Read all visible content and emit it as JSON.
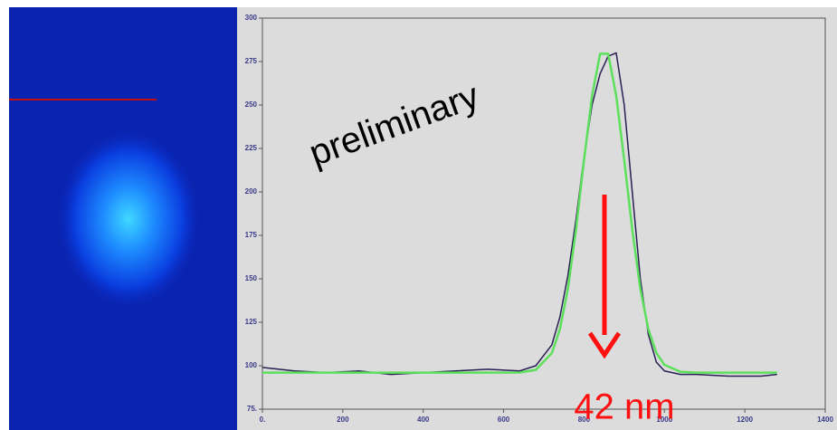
{
  "chart_data": {
    "type": "line",
    "annotations": [
      "preliminary",
      "42 nm"
    ],
    "x": [
      0,
      80,
      160,
      240,
      320,
      400,
      480,
      560,
      640,
      680,
      720,
      740,
      760,
      780,
      800,
      820,
      840,
      860,
      880,
      900,
      920,
      940,
      960,
      980,
      1000,
      1040,
      1080,
      1160,
      1240,
      1280
    ],
    "series": [
      {
        "color": "#2a1f55",
        "values": [
          99,
          97,
          96,
          97,
          95,
          96,
          97,
          98,
          97,
          100,
          112,
          128,
          152,
          184,
          220,
          250,
          268,
          278,
          280,
          250,
          200,
          150,
          118,
          102,
          97,
          95,
          95,
          94,
          94,
          95
        ]
      },
      {
        "color": "#5ce05c",
        "values": [
          96,
          96,
          96,
          96,
          96,
          96,
          96,
          96,
          96.1,
          97.6,
          107.3,
          121,
          144.4,
          178.3,
          218.4,
          255.4,
          279.5,
          279.5,
          255.4,
          218.4,
          178.3,
          144.4,
          121,
          107.3,
          100.5,
          96.5,
          96,
          96,
          96,
          96
        ]
      }
    ],
    "xlim": [
      0,
      1400
    ],
    "ylim": [
      75,
      300
    ],
    "xticks": [
      {
        "value": 0,
        "label": "0."
      },
      200,
      400,
      600,
      800,
      1000,
      1200,
      1400
    ],
    "yticks": [
      {
        "value": 75,
        "label": "75."
      },
      100,
      125,
      150,
      175,
      200,
      225,
      250,
      275,
      300
    ]
  }
}
